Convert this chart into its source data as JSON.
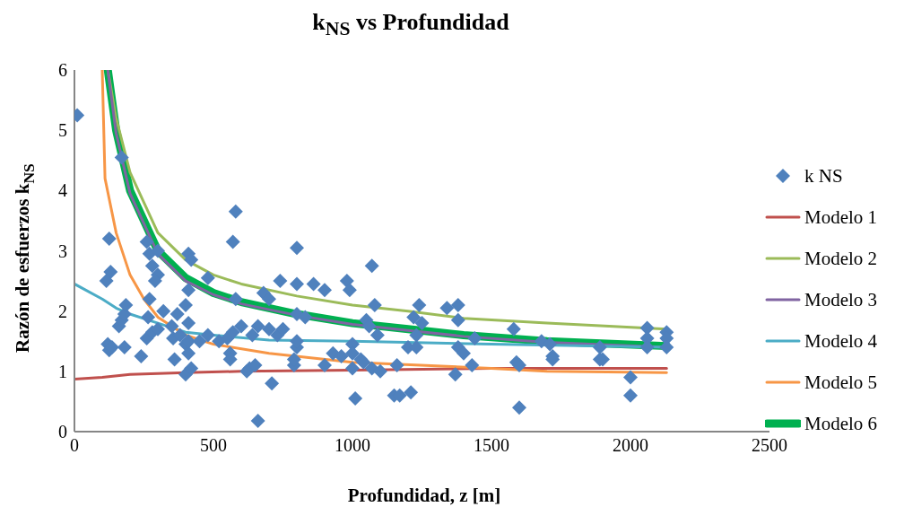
{
  "chart_data": {
    "type": "scatter",
    "title": "k$_{NS}$ vs Profundidad",
    "xlabel": "Profundidad, z [m]",
    "ylabel": "Razón de esfuerzos k$_{NS}$",
    "xlim": [
      0,
      2500
    ],
    "xticks": [
      0,
      500,
      1000,
      1500,
      2000,
      2500
    ],
    "ylim": [
      0,
      6
    ],
    "yticks": [
      0,
      1,
      2,
      3,
      4,
      5,
      6
    ],
    "legend": "right",
    "series": [
      {
        "name": "k NS",
        "marker": "diamond",
        "color": "#4f81bd",
        "x": [
          10,
          170,
          125,
          130,
          115,
          120,
          125,
          135,
          160,
          170,
          180,
          185,
          180,
          240,
          260,
          270,
          280,
          300,
          300,
          290,
          270,
          265,
          260,
          280,
          300,
          320,
          350,
          355,
          360,
          370,
          380,
          400,
          410,
          400,
          420,
          410,
          420,
          410,
          400,
          410,
          410,
          450,
          480,
          480,
          520,
          550,
          560,
          560,
          570,
          580,
          570,
          580,
          600,
          620,
          630,
          650,
          640,
          660,
          660,
          680,
          700,
          700,
          710,
          730,
          740,
          750,
          790,
          790,
          800,
          800,
          800,
          800,
          800,
          830,
          860,
          900,
          900,
          930,
          960,
          980,
          990,
          1000,
          1000,
          1000,
          1010,
          1030,
          1040,
          1050,
          1060,
          1070,
          1080,
          1090,
          1070,
          1100,
          1150,
          1160,
          1170,
          1200,
          1210,
          1220,
          1230,
          1230,
          1240,
          1250,
          1340,
          1380,
          1380,
          1370,
          1380,
          1400,
          1430,
          1440,
          1580,
          1590,
          1600,
          1600,
          1680,
          1710,
          1720,
          1720,
          1890,
          1890,
          1900,
          2000,
          2000,
          2060,
          2060,
          2060,
          2130,
          2130,
          2130
        ],
        "values": [
          5.25,
          4.55,
          3.2,
          2.65,
          2.5,
          1.45,
          1.35,
          1.4,
          1.75,
          1.85,
          1.95,
          2.1,
          1.4,
          1.25,
          3.15,
          2.95,
          2.75,
          3.0,
          2.6,
          2.5,
          2.2,
          1.9,
          1.55,
          1.65,
          1.7,
          2.0,
          1.75,
          1.55,
          1.2,
          1.95,
          1.6,
          1.45,
          1.3,
          0.95,
          1.05,
          2.95,
          2.85,
          2.35,
          2.1,
          1.8,
          1.5,
          1.5,
          1.6,
          2.55,
          1.5,
          1.55,
          1.3,
          1.2,
          1.65,
          3.65,
          3.15,
          2.2,
          1.75,
          1.0,
          1.05,
          1.1,
          1.6,
          1.75,
          0.18,
          2.3,
          2.2,
          1.7,
          0.8,
          1.6,
          2.5,
          1.7,
          1.1,
          1.2,
          1.4,
          1.5,
          3.05,
          2.45,
          1.95,
          1.9,
          2.45,
          1.1,
          2.35,
          1.3,
          1.25,
          2.5,
          2.35,
          1.45,
          1.3,
          1.05,
          0.55,
          1.2,
          1.15,
          1.85,
          1.75,
          2.75,
          2.1,
          1.6,
          1.05,
          1.0,
          0.6,
          1.1,
          0.6,
          1.4,
          0.65,
          1.9,
          1.6,
          1.4,
          2.1,
          1.8,
          2.05,
          2.1,
          1.85,
          0.95,
          1.4,
          1.3,
          1.1,
          1.55,
          1.7,
          1.15,
          1.1,
          0.4,
          1.5,
          1.45,
          1.25,
          1.2,
          1.2,
          1.4,
          1.2,
          0.9,
          0.6,
          1.72,
          1.55,
          1.4,
          1.65,
          1.55,
          1.4
        ]
      },
      {
        "name": "Modelo 1",
        "type": "line",
        "marker": "none",
        "color": "#c0504d",
        "x": [
          0,
          100,
          200,
          400,
          600,
          1000,
          1500,
          2130
        ],
        "values": [
          0.87,
          0.9,
          0.95,
          0.98,
          1.0,
          1.02,
          1.05,
          1.05
        ]
      },
      {
        "name": "Modelo 2",
        "type": "line",
        "marker": "none",
        "color": "#9bbb59",
        "x": [
          120,
          150,
          200,
          300,
          400,
          500,
          600,
          800,
          1000,
          1200,
          1400,
          1700,
          2130
        ],
        "values": [
          6,
          5.2,
          4.3,
          3.3,
          2.85,
          2.6,
          2.45,
          2.25,
          2.1,
          2.0,
          1.88,
          1.8,
          1.7
        ]
      },
      {
        "name": "Modelo 3",
        "type": "line",
        "marker": "none",
        "color": "#8064a2",
        "x": [
          120,
          150,
          200,
          300,
          400,
          500,
          600,
          800,
          1000,
          1200,
          1400,
          1700,
          2130
        ],
        "values": [
          6,
          4.95,
          3.95,
          2.95,
          2.5,
          2.27,
          2.12,
          1.93,
          1.78,
          1.68,
          1.58,
          1.48,
          1.4
        ]
      },
      {
        "name": "Modelo 4",
        "type": "line",
        "marker": "none",
        "color": "#4bacc6",
        "x": [
          0,
          100,
          150,
          200,
          300,
          400,
          500,
          700,
          1000,
          1500,
          2130
        ],
        "values": [
          2.45,
          2.2,
          2.05,
          1.95,
          1.8,
          1.65,
          1.6,
          1.52,
          1.5,
          1.45,
          1.4
        ]
      },
      {
        "name": "Modelo 5",
        "type": "line",
        "marker": "none",
        "color": "#f79646",
        "x": [
          100,
          110,
          150,
          200,
          250,
          300,
          400,
          500,
          700,
          1000,
          1500,
          1700,
          2130
        ],
        "values": [
          6,
          4.2,
          3.3,
          2.6,
          2.2,
          1.9,
          1.6,
          1.45,
          1.3,
          1.15,
          1.05,
          1.0,
          0.98
        ]
      },
      {
        "name": "Modelo 6",
        "type": "line",
        "marker": "none",
        "color": "#00b050",
        "x": [
          120,
          150,
          200,
          300,
          400,
          500,
          600,
          800,
          1000,
          1200,
          1400,
          1700,
          2130
        ],
        "values": [
          6,
          5.0,
          4.0,
          3.0,
          2.55,
          2.3,
          2.15,
          1.95,
          1.8,
          1.7,
          1.6,
          1.5,
          1.42
        ]
      }
    ]
  }
}
